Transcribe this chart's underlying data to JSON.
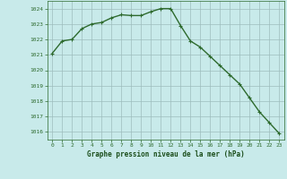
{
  "x": [
    0,
    1,
    2,
    3,
    4,
    5,
    6,
    7,
    8,
    9,
    10,
    11,
    12,
    13,
    14,
    15,
    16,
    17,
    18,
    19,
    20,
    21,
    22,
    23
  ],
  "y": [
    1021.1,
    1021.9,
    1022.0,
    1022.7,
    1023.0,
    1023.1,
    1023.4,
    1023.6,
    1023.55,
    1023.55,
    1023.8,
    1024.0,
    1024.0,
    1022.9,
    1021.9,
    1021.5,
    1020.9,
    1020.3,
    1019.7,
    1019.1,
    1018.2,
    1017.3,
    1016.6,
    1015.9
  ],
  "line_color": "#2d6a2d",
  "marker": "+",
  "marker_color": "#2d6a2d",
  "bg_color": "#c8eaea",
  "grid_color": "#9dbdbd",
  "ylim": [
    1015.5,
    1024.5
  ],
  "yticks": [
    1016,
    1017,
    1018,
    1019,
    1020,
    1021,
    1022,
    1023,
    1024
  ],
  "xticks": [
    0,
    1,
    2,
    3,
    4,
    5,
    6,
    7,
    8,
    9,
    10,
    11,
    12,
    13,
    14,
    15,
    16,
    17,
    18,
    19,
    20,
    21,
    22,
    23
  ],
  "xlabel": "Graphe pression niveau de la mer (hPa)",
  "xlabel_color": "#1a4d1a",
  "tick_label_color": "#1a4d1a",
  "tick_color": "#2d6a2d",
  "linewidth": 1.0,
  "markersize": 3.5,
  "markeredgewidth": 0.8
}
